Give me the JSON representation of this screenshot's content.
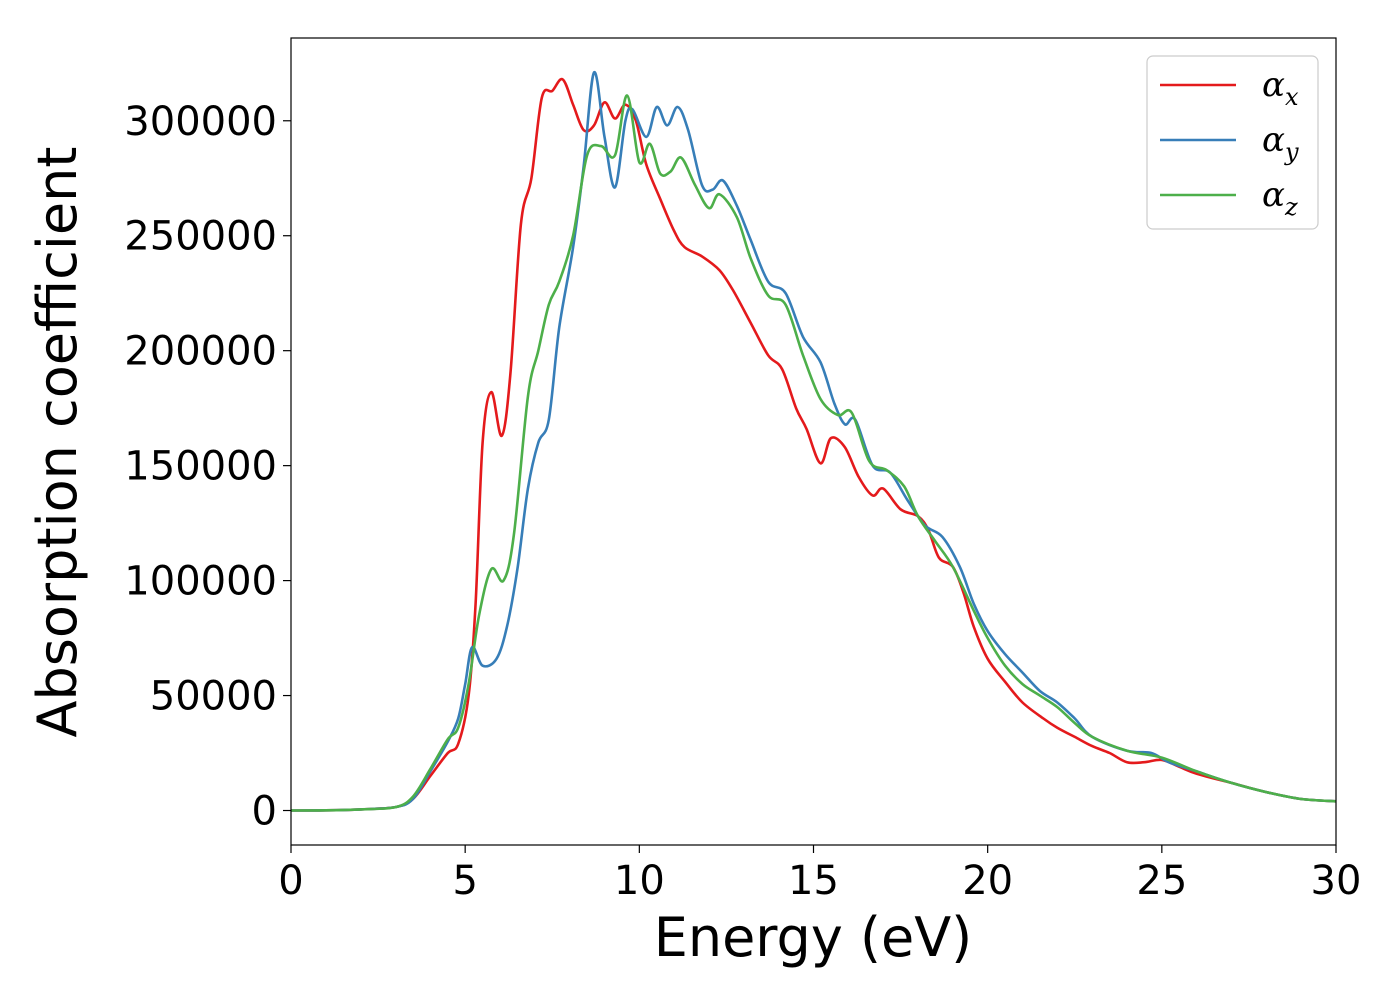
{
  "chart_data": {
    "type": "line",
    "title": "",
    "xlabel": "Energy (eV)",
    "ylabel": "Absorption coefficient",
    "xlim": [
      0,
      30
    ],
    "ylim": [
      -15000,
      336000
    ],
    "xticks": [
      0,
      5,
      10,
      15,
      20,
      25,
      30
    ],
    "yticks": [
      0,
      50000,
      100000,
      150000,
      200000,
      250000,
      300000
    ],
    "grid": false,
    "legend_position": "top-right",
    "series": [
      {
        "name": "αx",
        "base": "α",
        "sub": "x",
        "color": "#e41a1c",
        "points": [
          [
            0,
            0
          ],
          [
            1,
            100
          ],
          [
            2,
            500
          ],
          [
            3,
            1500
          ],
          [
            3.5,
            5000
          ],
          [
            4,
            15000
          ],
          [
            4.5,
            25000
          ],
          [
            4.8,
            29000
          ],
          [
            5.1,
            50000
          ],
          [
            5.3,
            90000
          ],
          [
            5.5,
            160000
          ],
          [
            5.75,
            182000
          ],
          [
            6.05,
            163000
          ],
          [
            6.3,
            190000
          ],
          [
            6.6,
            255000
          ],
          [
            6.9,
            275000
          ],
          [
            7.2,
            310000
          ],
          [
            7.5,
            313000
          ],
          [
            7.8,
            318000
          ],
          [
            8.1,
            307000
          ],
          [
            8.4,
            296000
          ],
          [
            8.7,
            298000
          ],
          [
            9.0,
            308000
          ],
          [
            9.3,
            301000
          ],
          [
            9.6,
            307000
          ],
          [
            9.9,
            300000
          ],
          [
            10.2,
            281000
          ],
          [
            10.6,
            266000
          ],
          [
            11.0,
            252000
          ],
          [
            11.3,
            245000
          ],
          [
            11.8,
            241000
          ],
          [
            12.3,
            235000
          ],
          [
            12.7,
            226000
          ],
          [
            13.2,
            212000
          ],
          [
            13.7,
            198000
          ],
          [
            14.1,
            192000
          ],
          [
            14.5,
            175000
          ],
          [
            14.8,
            166000
          ],
          [
            15.2,
            151000
          ],
          [
            15.5,
            162000
          ],
          [
            15.9,
            158000
          ],
          [
            16.3,
            145000
          ],
          [
            16.7,
            137000
          ],
          [
            17.0,
            140000
          ],
          [
            17.5,
            131000
          ],
          [
            18.0,
            128000
          ],
          [
            18.3,
            122000
          ],
          [
            18.6,
            110000
          ],
          [
            19.0,
            106000
          ],
          [
            19.3,
            95000
          ],
          [
            19.6,
            80000
          ],
          [
            20.0,
            66000
          ],
          [
            20.5,
            56000
          ],
          [
            21.0,
            47000
          ],
          [
            21.6,
            40000
          ],
          [
            22.0,
            36000
          ],
          [
            22.5,
            32000
          ],
          [
            23.0,
            28000
          ],
          [
            23.5,
            25000
          ],
          [
            24.0,
            21000
          ],
          [
            24.5,
            21000
          ],
          [
            25.0,
            22000
          ],
          [
            25.5,
            19000
          ],
          [
            26.0,
            16000
          ],
          [
            27.0,
            12000
          ],
          [
            28.0,
            8000
          ],
          [
            29.0,
            5000
          ],
          [
            30.0,
            4000
          ]
        ]
      },
      {
        "name": "αy",
        "base": "α",
        "sub": "y",
        "color": "#377eb8",
        "points": [
          [
            0,
            0
          ],
          [
            1,
            100
          ],
          [
            2,
            500
          ],
          [
            3,
            1500
          ],
          [
            3.5,
            5000
          ],
          [
            4,
            17000
          ],
          [
            4.5,
            30000
          ],
          [
            4.8,
            40000
          ],
          [
            5.0,
            55000
          ],
          [
            5.2,
            71000
          ],
          [
            5.5,
            63000
          ],
          [
            5.9,
            66000
          ],
          [
            6.2,
            80000
          ],
          [
            6.5,
            105000
          ],
          [
            6.8,
            140000
          ],
          [
            7.1,
            160000
          ],
          [
            7.4,
            170000
          ],
          [
            7.7,
            210000
          ],
          [
            8.1,
            245000
          ],
          [
            8.4,
            280000
          ],
          [
            8.7,
            321000
          ],
          [
            9.0,
            293000
          ],
          [
            9.3,
            271000
          ],
          [
            9.6,
            300000
          ],
          [
            9.8,
            305000
          ],
          [
            10.2,
            293000
          ],
          [
            10.5,
            306000
          ],
          [
            10.8,
            298000
          ],
          [
            11.1,
            306000
          ],
          [
            11.4,
            296000
          ],
          [
            11.8,
            272000
          ],
          [
            12.1,
            270000
          ],
          [
            12.4,
            274000
          ],
          [
            12.8,
            263000
          ],
          [
            13.2,
            248000
          ],
          [
            13.7,
            230000
          ],
          [
            14.2,
            225000
          ],
          [
            14.7,
            206000
          ],
          [
            15.2,
            195000
          ],
          [
            15.6,
            177000
          ],
          [
            15.9,
            168000
          ],
          [
            16.2,
            170000
          ],
          [
            16.7,
            150000
          ],
          [
            17.2,
            147000
          ],
          [
            17.7,
            135000
          ],
          [
            18.2,
            124000
          ],
          [
            18.7,
            119000
          ],
          [
            19.2,
            106000
          ],
          [
            19.6,
            90000
          ],
          [
            20.0,
            78000
          ],
          [
            20.5,
            68000
          ],
          [
            21.0,
            60000
          ],
          [
            21.5,
            52000
          ],
          [
            22.0,
            47000
          ],
          [
            22.5,
            40000
          ],
          [
            23.0,
            32000
          ],
          [
            24.0,
            26000
          ],
          [
            24.7,
            25000
          ],
          [
            25.2,
            21000
          ],
          [
            26.0,
            17000
          ],
          [
            27.0,
            12000
          ],
          [
            28.0,
            8000
          ],
          [
            29.0,
            5000
          ],
          [
            30.0,
            4000
          ]
        ]
      },
      {
        "name": "αz",
        "base": "α",
        "sub": "z",
        "color": "#4daf4a",
        "points": [
          [
            0,
            0
          ],
          [
            1,
            100
          ],
          [
            2,
            500
          ],
          [
            3,
            1500
          ],
          [
            3.5,
            6000
          ],
          [
            4,
            18000
          ],
          [
            4.5,
            31000
          ],
          [
            4.8,
            36000
          ],
          [
            5.1,
            55000
          ],
          [
            5.4,
            85000
          ],
          [
            5.75,
            105000
          ],
          [
            6.1,
            100000
          ],
          [
            6.4,
            120000
          ],
          [
            6.8,
            180000
          ],
          [
            7.1,
            200000
          ],
          [
            7.4,
            220000
          ],
          [
            7.7,
            230000
          ],
          [
            8.1,
            250000
          ],
          [
            8.5,
            285000
          ],
          [
            8.9,
            289000
          ],
          [
            9.3,
            285000
          ],
          [
            9.65,
            311000
          ],
          [
            10.0,
            282000
          ],
          [
            10.3,
            290000
          ],
          [
            10.6,
            277000
          ],
          [
            10.9,
            278000
          ],
          [
            11.2,
            284000
          ],
          [
            11.6,
            272000
          ],
          [
            12.0,
            262000
          ],
          [
            12.3,
            268000
          ],
          [
            12.8,
            258000
          ],
          [
            13.2,
            240000
          ],
          [
            13.7,
            224000
          ],
          [
            14.2,
            220000
          ],
          [
            14.7,
            198000
          ],
          [
            15.2,
            179000
          ],
          [
            15.7,
            172000
          ],
          [
            16.1,
            173000
          ],
          [
            16.6,
            152000
          ],
          [
            17.1,
            148000
          ],
          [
            17.6,
            141000
          ],
          [
            18.0,
            128000
          ],
          [
            18.5,
            117000
          ],
          [
            19.0,
            106000
          ],
          [
            19.6,
            87000
          ],
          [
            20.0,
            75000
          ],
          [
            20.5,
            63000
          ],
          [
            21.0,
            55000
          ],
          [
            21.5,
            50000
          ],
          [
            22.0,
            45000
          ],
          [
            22.5,
            38000
          ],
          [
            23.0,
            32000
          ],
          [
            24.0,
            26000
          ],
          [
            25.0,
            23000
          ],
          [
            26.0,
            17000
          ],
          [
            27.0,
            12000
          ],
          [
            28.0,
            8000
          ],
          [
            29.0,
            5000
          ],
          [
            30.0,
            4000
          ]
        ]
      }
    ]
  }
}
